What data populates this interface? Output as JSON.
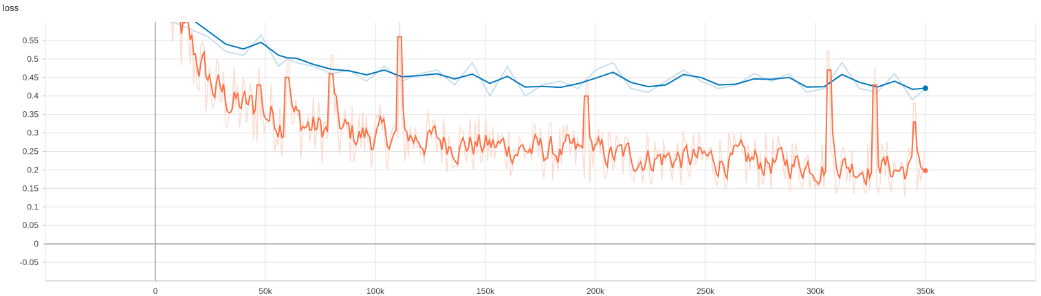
{
  "chart_data": {
    "type": "line",
    "title": "loss",
    "xlabel": "",
    "ylabel": "",
    "xlim": [
      -50000,
      400000
    ],
    "ylim": [
      -0.1,
      0.6
    ],
    "x_ticks": [
      0,
      50000,
      100000,
      150000,
      200000,
      250000,
      300000,
      350000
    ],
    "x_tick_labels": [
      "0",
      "50k",
      "100k",
      "150k",
      "200k",
      "250k",
      "300k",
      "350k"
    ],
    "y_ticks": [
      -0.05,
      0,
      0.05,
      0.1,
      0.15,
      0.2,
      0.25,
      0.3,
      0.35,
      0.4,
      0.45,
      0.5,
      0.55
    ],
    "y_tick_labels": [
      "-0.05",
      "0",
      "0.05",
      "0.1",
      "0.15",
      "0.2",
      "0.25",
      "0.3",
      "0.35",
      "0.4",
      "0.45",
      "0.5",
      "0.55"
    ],
    "grid": true,
    "legend": "none",
    "series": [
      {
        "color": "#0077bb",
        "raw_color": "#c6dff0",
        "x": [
          8000,
          16000,
          24000,
          32000,
          40000,
          48000,
          56000,
          60000,
          64000,
          72000,
          80000,
          88000,
          96000,
          104000,
          112000,
          120000,
          128000,
          136000,
          144000,
          152000,
          160000,
          168000,
          176000,
          184000,
          192000,
          200000,
          208000,
          216000,
          224000,
          232000,
          240000,
          248000,
          256000,
          264000,
          272000,
          280000,
          288000,
          296000,
          304000,
          312000,
          320000,
          328000,
          336000,
          344000,
          350000
        ],
        "smoothed": [
          0.62,
          0.61,
          0.575,
          0.54,
          0.527,
          0.545,
          0.51,
          0.503,
          0.502,
          0.485,
          0.472,
          0.468,
          0.457,
          0.47,
          0.452,
          0.455,
          0.46,
          0.446,
          0.459,
          0.434,
          0.453,
          0.424,
          0.426,
          0.423,
          0.433,
          0.448,
          0.464,
          0.437,
          0.425,
          0.43,
          0.458,
          0.45,
          0.43,
          0.432,
          0.446,
          0.445,
          0.45,
          0.424,
          0.425,
          0.458,
          0.437,
          0.424,
          0.44,
          0.418,
          0.421
        ],
        "raw": [
          0.6,
          0.58,
          0.56,
          0.52,
          0.51,
          0.565,
          0.48,
          0.5,
          0.49,
          0.48,
          0.46,
          0.47,
          0.44,
          0.48,
          0.44,
          0.46,
          0.47,
          0.43,
          0.49,
          0.4,
          0.48,
          0.4,
          0.43,
          0.44,
          0.42,
          0.47,
          0.49,
          0.42,
          0.41,
          0.44,
          0.47,
          0.44,
          0.42,
          0.43,
          0.46,
          0.44,
          0.46,
          0.41,
          0.42,
          0.49,
          0.42,
          0.41,
          0.46,
          0.39,
          0.42
        ],
        "last_value": 0.421
      },
      {
        "color": "#ff7043",
        "raw_color": "#fcdcd2",
        "x_start": 7000,
        "x_end": 350000,
        "anchors": [
          [
            7000,
            0.6
          ],
          [
            12000,
            0.56
          ],
          [
            18000,
            0.5
          ],
          [
            25000,
            0.42
          ],
          [
            35000,
            0.38
          ],
          [
            45000,
            0.36
          ],
          [
            60000,
            0.33
          ],
          [
            80000,
            0.3
          ],
          [
            100000,
            0.29
          ],
          [
            120000,
            0.285
          ],
          [
            140000,
            0.27
          ],
          [
            160000,
            0.26
          ],
          [
            180000,
            0.25
          ],
          [
            200000,
            0.24
          ],
          [
            220000,
            0.235
          ],
          [
            240000,
            0.23
          ],
          [
            260000,
            0.225
          ],
          [
            280000,
            0.22
          ],
          [
            300000,
            0.215
          ],
          [
            320000,
            0.21
          ],
          [
            340000,
            0.2
          ],
          [
            350000,
            0.198
          ]
        ],
        "spikes": [
          [
            47000,
            0.43
          ],
          [
            60000,
            0.45
          ],
          [
            80000,
            0.46
          ],
          [
            111000,
            0.56
          ],
          [
            196000,
            0.4
          ],
          [
            306000,
            0.47
          ],
          [
            327000,
            0.43
          ],
          [
            345000,
            0.33
          ]
        ],
        "last_value": 0.198
      }
    ]
  }
}
